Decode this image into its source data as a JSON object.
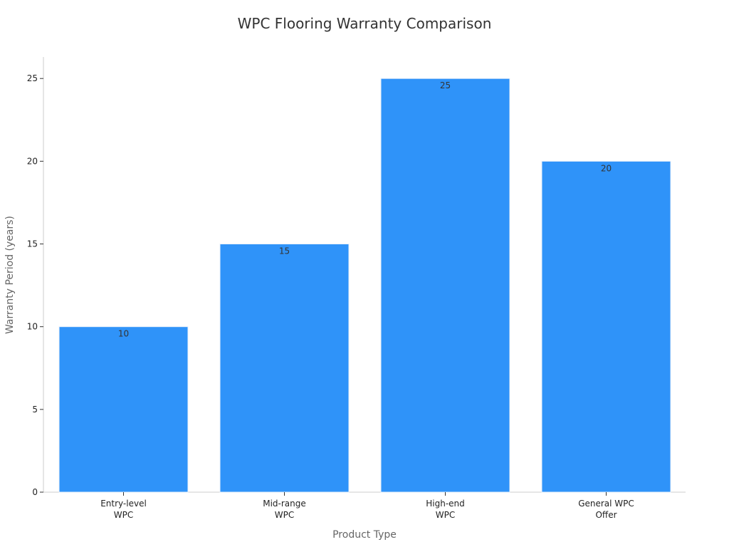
{
  "chart_data": {
    "type": "bar",
    "title": "WPC Flooring Warranty Comparison",
    "xlabel": "Product Type",
    "ylabel": "Warranty Period (years)",
    "categories": [
      [
        "Entry-level",
        "WPC"
      ],
      [
        "Mid-range",
        "WPC"
      ],
      [
        "High-end",
        "WPC"
      ],
      [
        "General WPC",
        "Offer"
      ]
    ],
    "values": [
      10,
      15,
      25,
      20
    ],
    "data_labels": [
      "10",
      "15",
      "25",
      "20"
    ],
    "ylim": [
      0,
      26.3
    ],
    "yticks": [
      0,
      5,
      10,
      15,
      20,
      25
    ],
    "ytick_labels": [
      "0",
      "5",
      "10",
      "15",
      "20",
      "25"
    ],
    "grid": false,
    "bar_color": "#2f93f9",
    "bar_edge_color": "#e8f0fa"
  }
}
